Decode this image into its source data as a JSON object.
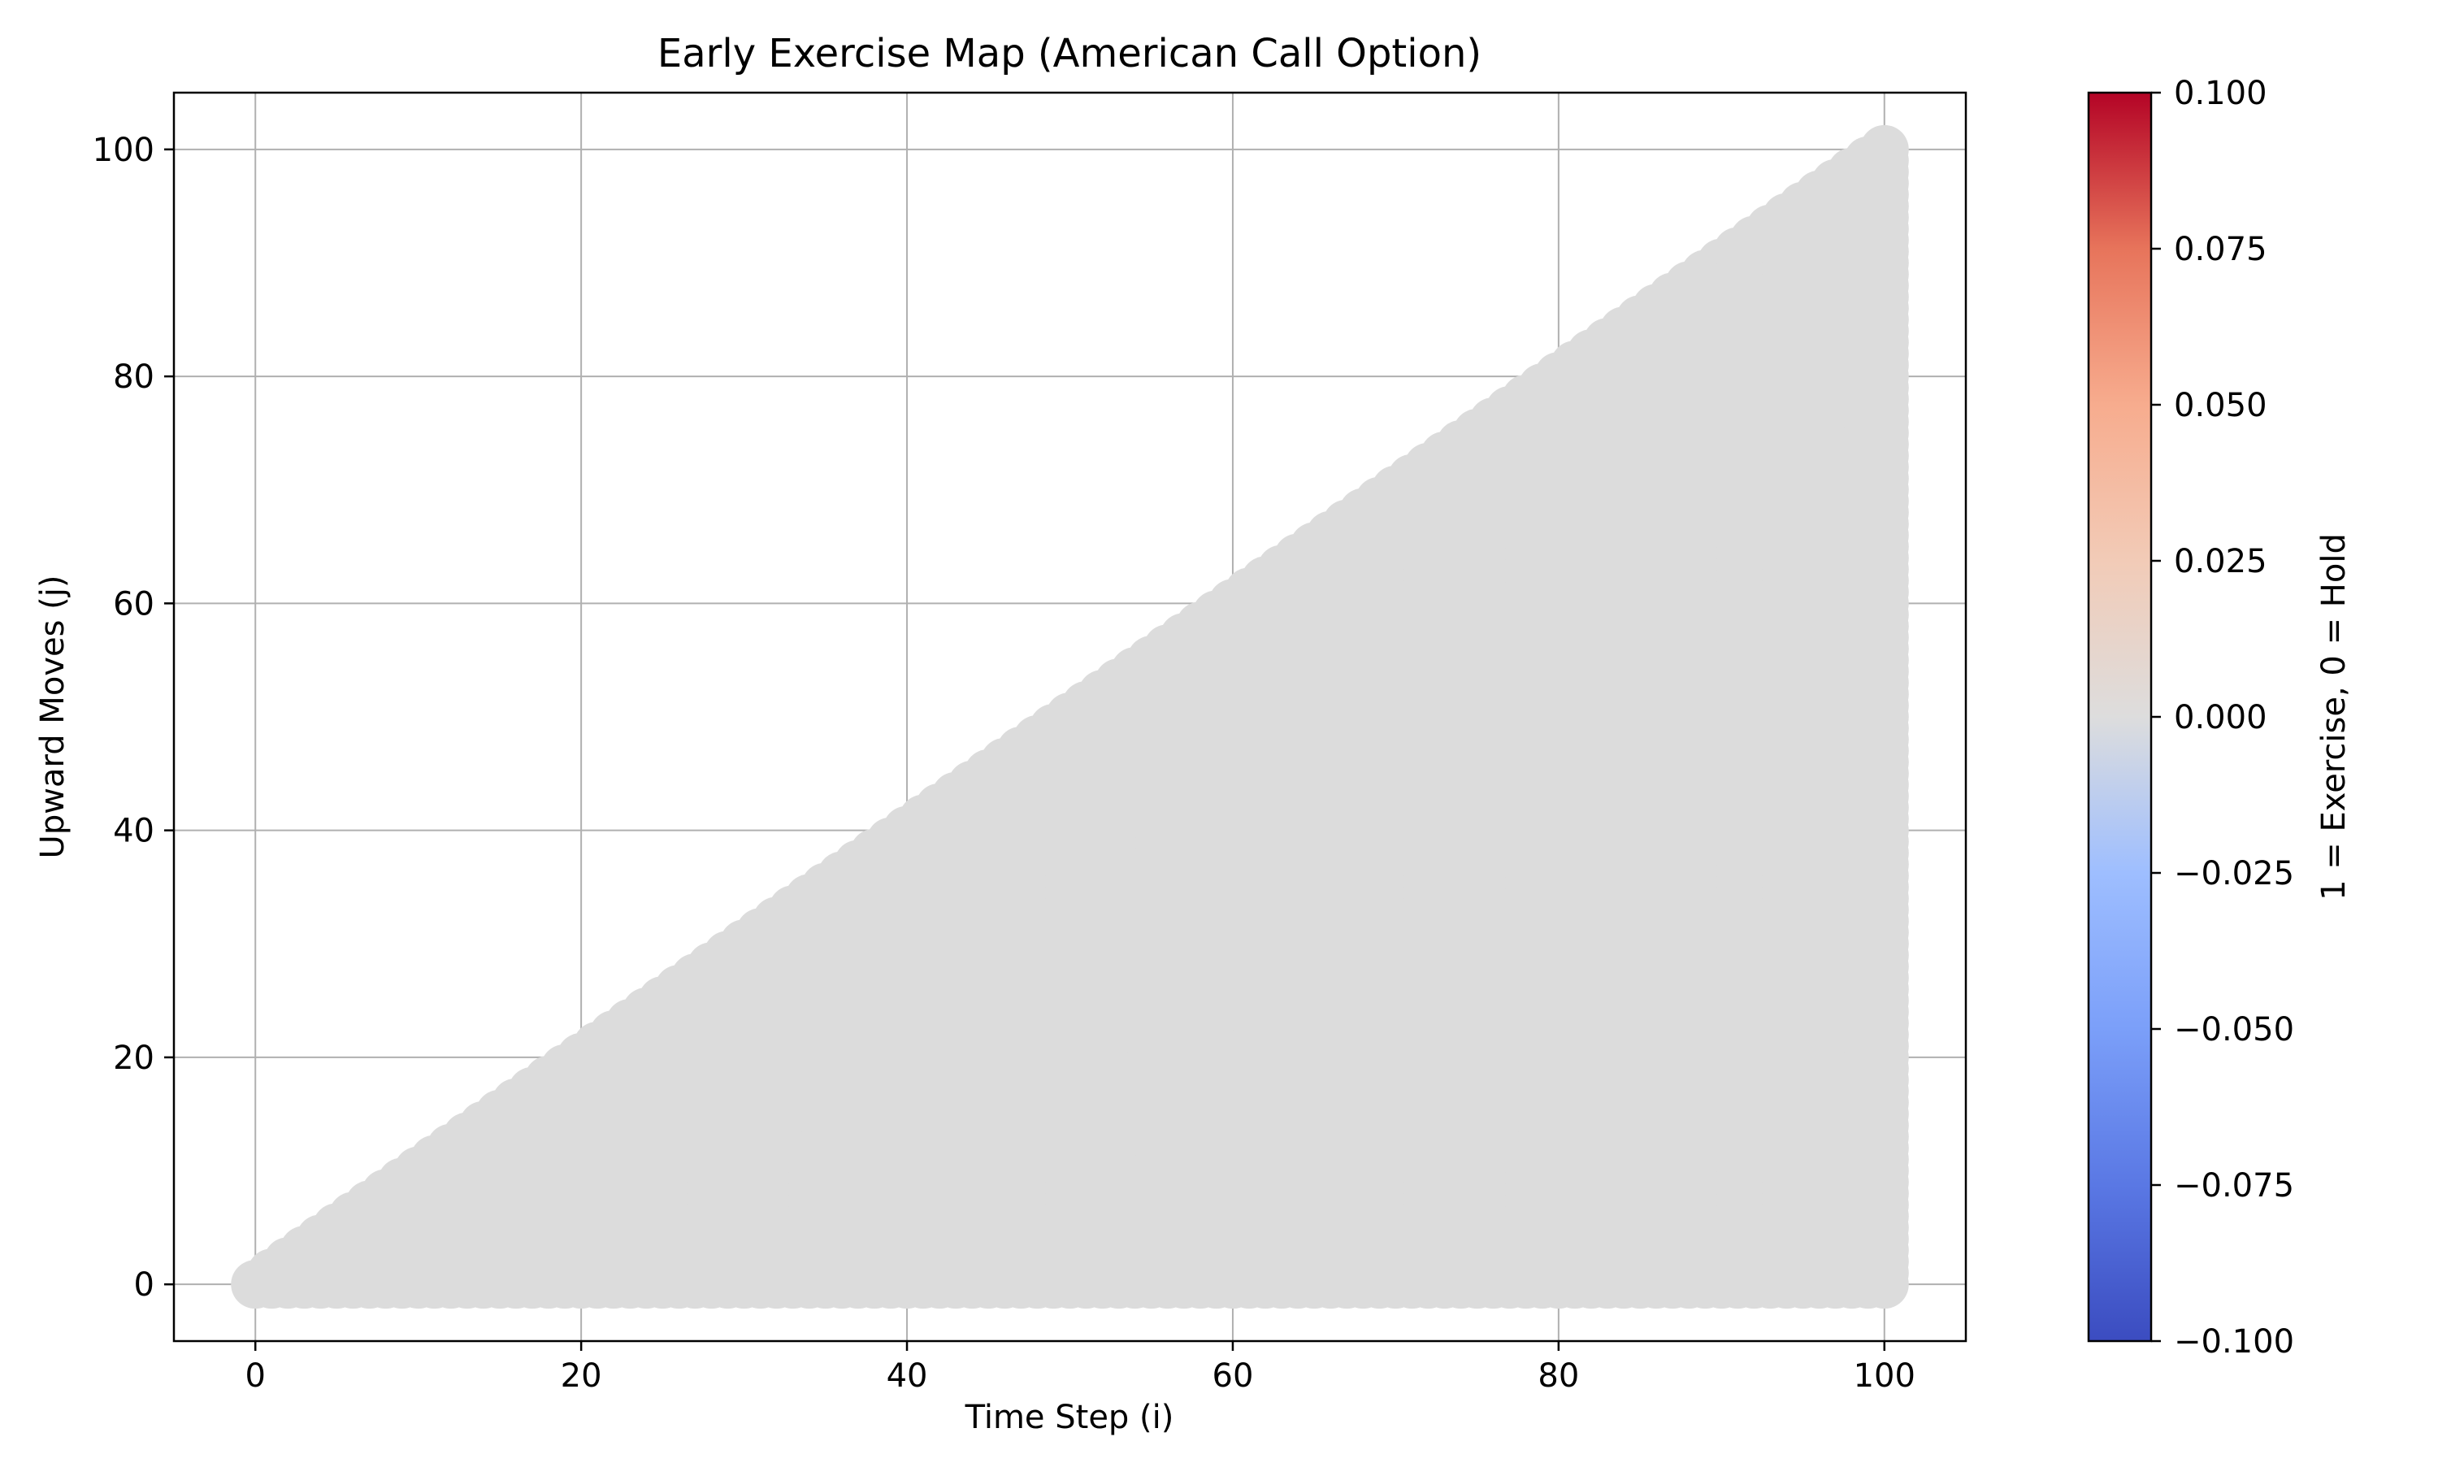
{
  "chart_data": {
    "type": "scatter",
    "title": "Early Exercise Map (American Call Option)",
    "xlabel": "Time Step (i)",
    "ylabel": "Upward Moves (j)",
    "xlim": [
      -5,
      105
    ],
    "ylim": [
      -5,
      105
    ],
    "x_ticks": [
      0,
      20,
      40,
      60,
      80,
      100
    ],
    "y_ticks": [
      0,
      20,
      40,
      60,
      80,
      100
    ],
    "grid": true,
    "points": {
      "description": "one marker per binomial tree node (i, j) with 0 <= j <= i <= 100",
      "i_range": [
        0,
        100
      ],
      "value": 0
    },
    "colorbar": {
      "label": "1 = Exercise, 0 = Hold",
      "colormap": "coolwarm",
      "range": [
        -0.1,
        0.1
      ],
      "ticks": [
        "0.100",
        "0.075",
        "0.050",
        "0.025",
        "0.000",
        "−0.025",
        "−0.050",
        "−0.075",
        "−0.100"
      ],
      "color_low": "#3b4cc0",
      "color_mid": "#dddddd",
      "color_high": "#b40426"
    },
    "point_color": "#dcdcdc"
  }
}
